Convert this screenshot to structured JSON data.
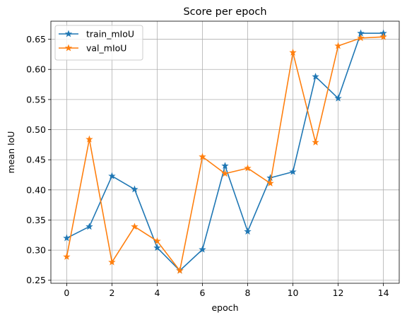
{
  "chart_data": {
    "type": "line",
    "title": "Score per epoch",
    "xlabel": "epoch",
    "ylabel": "mean IoU",
    "xlim": [
      -0.7,
      14.7
    ],
    "ylim": [
      0.245,
      0.68
    ],
    "xticks": [
      0,
      2,
      4,
      6,
      8,
      10,
      12,
      14
    ],
    "yticks": [
      0.25,
      0.3,
      0.35,
      0.4,
      0.45,
      0.5,
      0.55,
      0.6,
      0.65
    ],
    "ytick_labels": [
      "0.25",
      "0.30",
      "0.35",
      "0.40",
      "0.45",
      "0.50",
      "0.55",
      "0.60",
      "0.65"
    ],
    "grid": true,
    "legend_position": "upper-left",
    "x": [
      0,
      1,
      2,
      3,
      4,
      5,
      6,
      7,
      8,
      9,
      10,
      11,
      12,
      13,
      14
    ],
    "series": [
      {
        "name": "train_mIoU",
        "color": "#1f77b4",
        "marker": "star",
        "values": [
          0.32,
          0.339,
          0.423,
          0.401,
          0.304,
          0.266,
          0.301,
          0.44,
          0.331,
          0.42,
          0.43,
          0.588,
          0.552,
          0.66,
          0.66
        ]
      },
      {
        "name": "val_mIoU",
        "color": "#ff7f0e",
        "marker": "star",
        "values": [
          0.289,
          0.484,
          0.28,
          0.339,
          0.315,
          0.266,
          0.455,
          0.427,
          0.436,
          0.411,
          0.628,
          0.479,
          0.639,
          0.652,
          0.654
        ]
      }
    ]
  }
}
